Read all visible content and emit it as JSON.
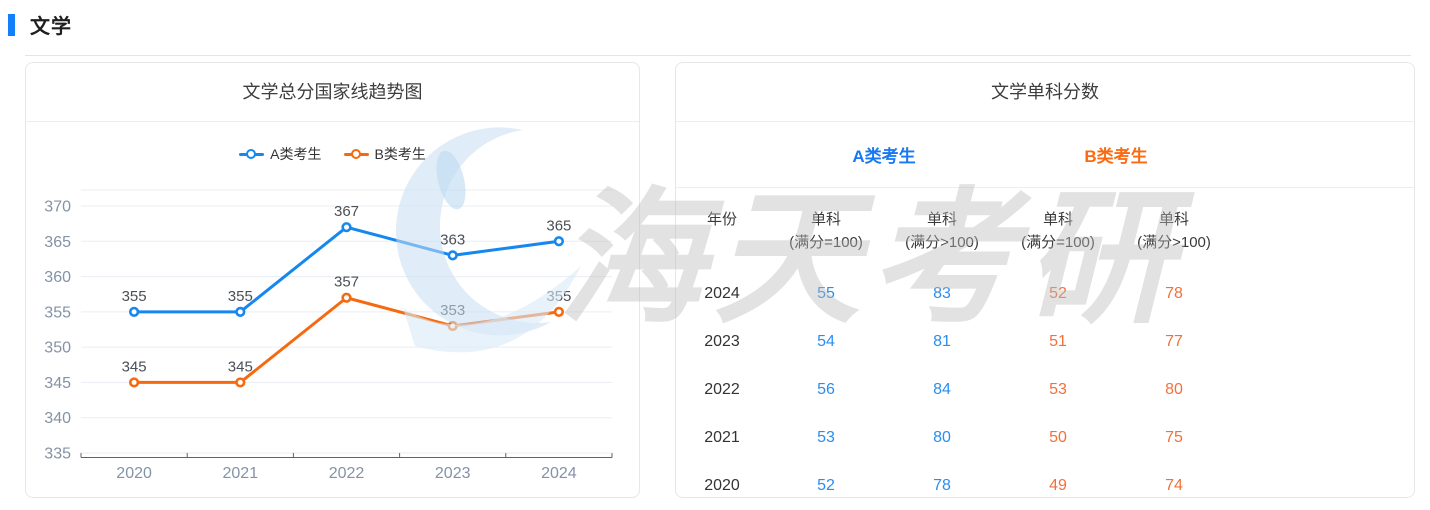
{
  "page": {
    "title": "文学",
    "accent_color": "#127FFB"
  },
  "trend_panel": {
    "title": "文学总分国家线趋势图"
  },
  "chart_data": {
    "type": "line",
    "title": "文学总分国家线趋势图",
    "categories": [
      "2020",
      "2021",
      "2022",
      "2023",
      "2024"
    ],
    "series": [
      {
        "name": "A类考生",
        "color": "#1787F0",
        "values": [
          355,
          355,
          367,
          363,
          365
        ]
      },
      {
        "name": "B类考生",
        "color": "#F56A11",
        "values": [
          345,
          345,
          357,
          353,
          355
        ]
      }
    ],
    "ylim": [
      335,
      370
    ],
    "y_ticks": [
      335,
      340,
      345,
      350,
      355,
      360,
      365,
      370
    ],
    "grid": true,
    "legend_position": "top",
    "data_labels": true,
    "marker": "hollow-circle"
  },
  "score_panel": {
    "title": "文学单科分数",
    "groups": [
      {
        "label": "A类考生",
        "header_color": "#1678F2",
        "value_color": "#2B8DF0"
      },
      {
        "label": "B类考生",
        "header_color": "#FB6A10",
        "value_color": "#F3703A"
      }
    ],
    "columns": {
      "year": "年份",
      "cols": [
        {
          "line1": "单科",
          "line2": "(满分=100)"
        },
        {
          "line1": "单科",
          "line2": "(满分>100)"
        },
        {
          "line1": "单科",
          "line2": "(满分=100)"
        },
        {
          "line1": "单科",
          "line2": "(满分>100)"
        }
      ]
    },
    "rows": [
      {
        "year": "2024",
        "values": [
          "55",
          "83",
          "52",
          "78"
        ]
      },
      {
        "year": "2023",
        "values": [
          "54",
          "81",
          "51",
          "77"
        ]
      },
      {
        "year": "2022",
        "values": [
          "56",
          "84",
          "53",
          "80"
        ]
      },
      {
        "year": "2021",
        "values": [
          "53",
          "80",
          "50",
          "75"
        ]
      },
      {
        "year": "2020",
        "values": [
          "52",
          "78",
          "49",
          "74"
        ]
      }
    ]
  },
  "watermark": {
    "text": "海天考研"
  }
}
